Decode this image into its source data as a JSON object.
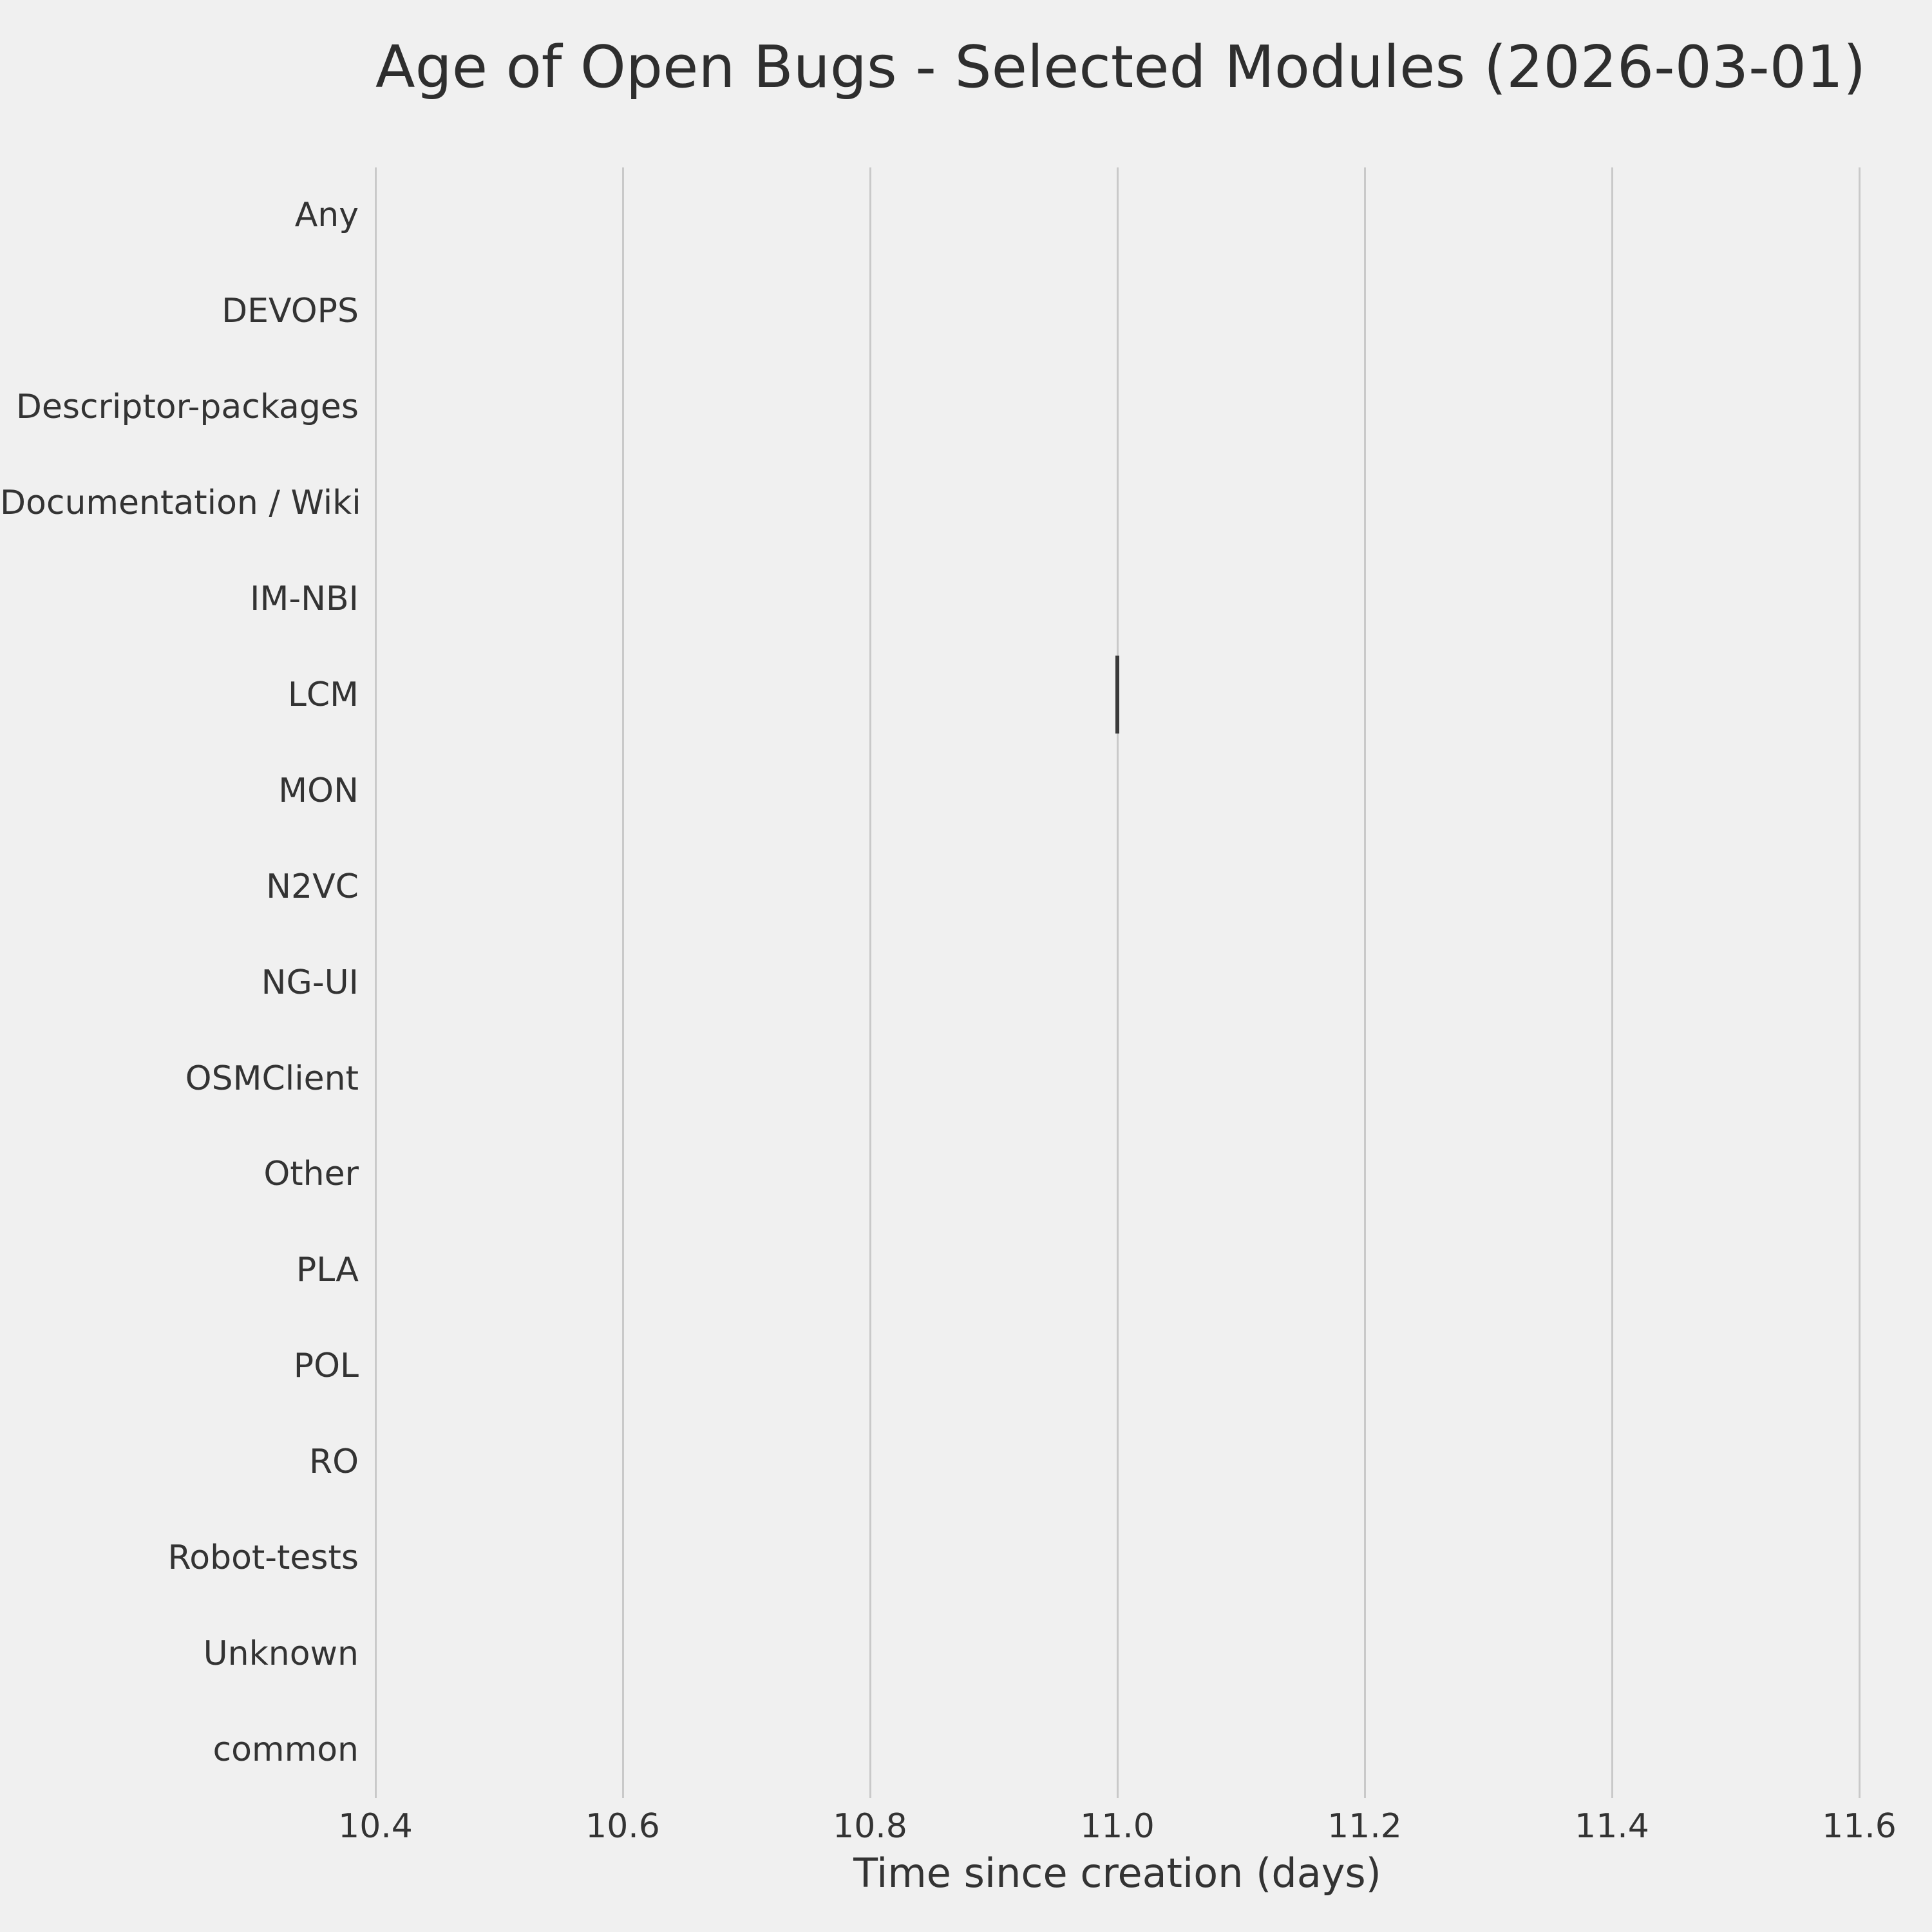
{
  "chart_data": {
    "type": "box",
    "orientation": "horizontal",
    "title": "Age of Open Bugs - Selected Modules (2026-03-01)",
    "xlabel": "Time since creation (days)",
    "ylabel": "",
    "categories": [
      "Any",
      "DEVOPS",
      "Descriptor-packages",
      "Documentation / Wiki",
      "IM-NBI",
      "LCM",
      "MON",
      "N2VC",
      "NG-UI",
      "OSMClient",
      "Other",
      "PLA",
      "POL",
      "RO",
      "Robot-tests",
      "Unknown",
      "common"
    ],
    "x_ticks": [
      "10.4",
      "10.6",
      "10.8",
      "11.0",
      "11.2",
      "11.4",
      "11.6"
    ],
    "xlim": [
      10.4,
      11.6
    ],
    "grid": "vertical-only",
    "legend": "none",
    "series": [
      {
        "name": "LCM",
        "min": 11.0,
        "q1": 11.0,
        "median": 11.0,
        "q3": 11.0,
        "max": 11.0
      }
    ],
    "note": "Only the LCM category has data; it renders as a single collapsed box/whisker line at 11.0 days. All other categories are empty.",
    "colors": {
      "background": "#f0f0f0",
      "gridline": "#c9c9c9",
      "marker": "#3a3a3a",
      "text": "#333333"
    }
  }
}
